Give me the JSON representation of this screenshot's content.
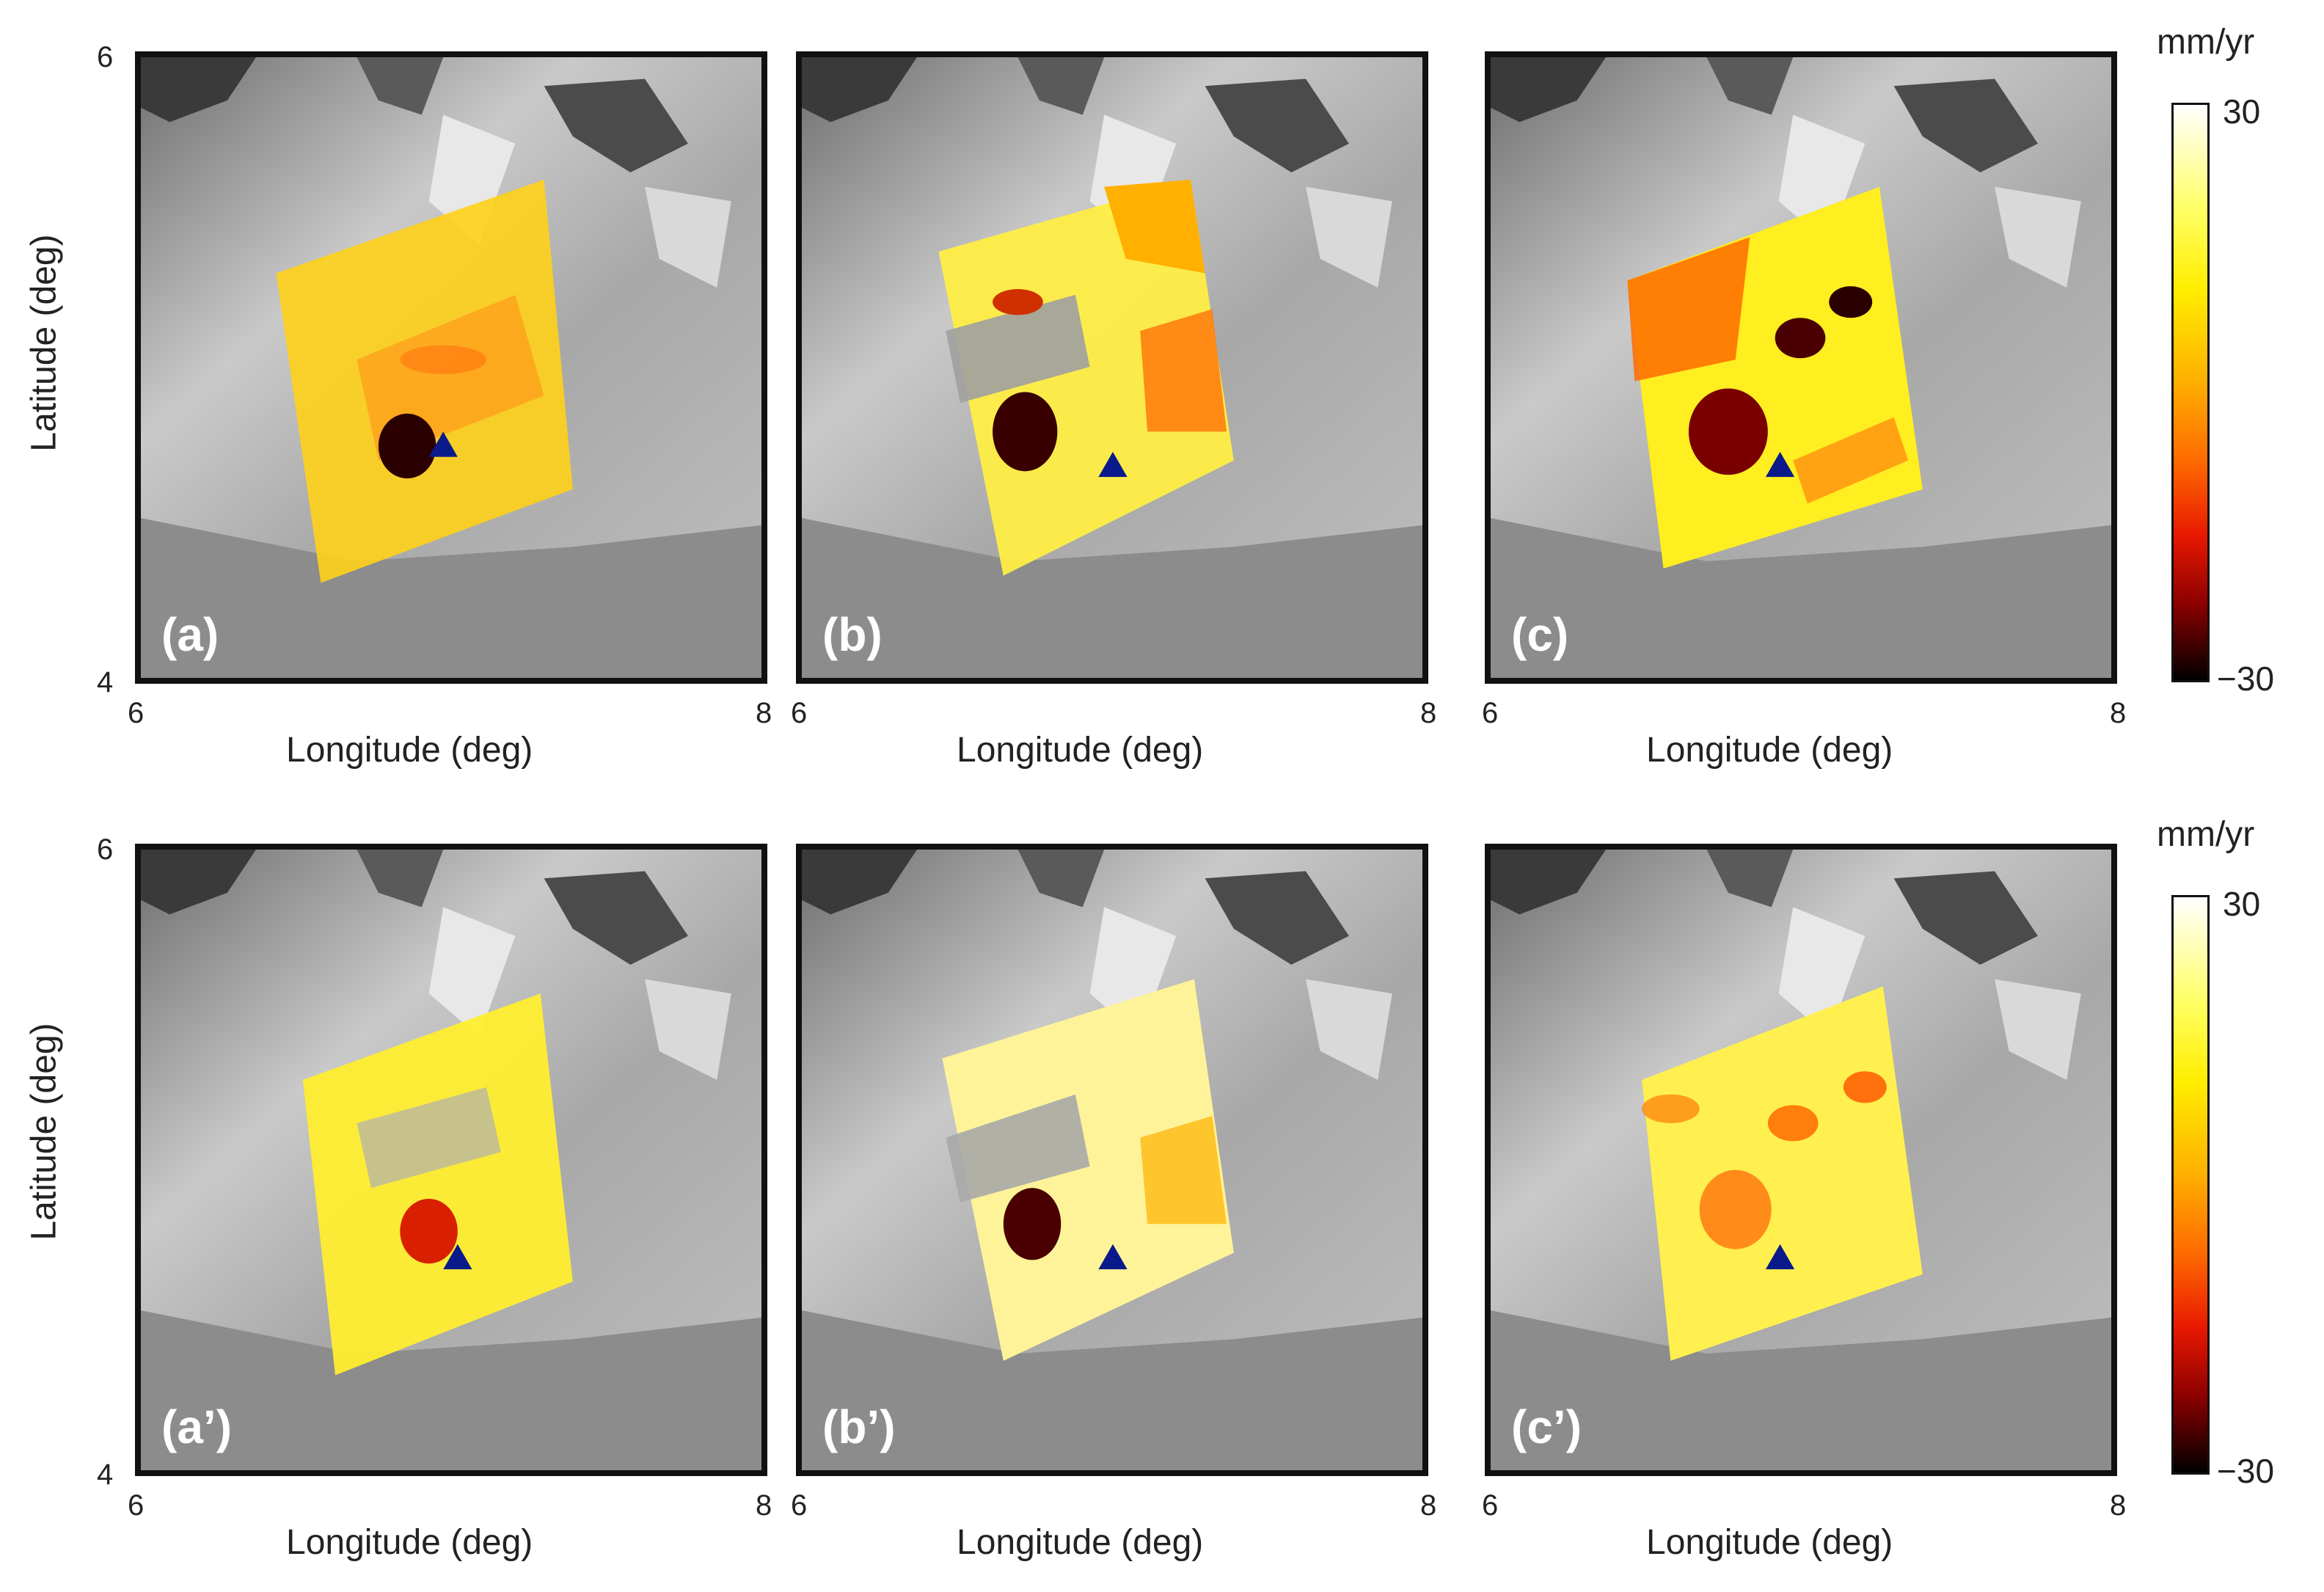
{
  "axes": {
    "xlabel": "Longitude (deg)",
    "ylabel": "Latitude (deg)",
    "x_ticks": [
      "6",
      "8"
    ],
    "y_ticks": [
      "6",
      "4"
    ]
  },
  "colorbar": {
    "unit": "mm/yr",
    "max": "30",
    "min": "−30",
    "colormap": [
      "#ffffff",
      "#ffff66",
      "#ffee00",
      "#ffb000",
      "#ff6a00",
      "#e81800",
      "#8a0000",
      "#000000"
    ]
  },
  "panels": [
    {
      "id": "a",
      "label": "(a)"
    },
    {
      "id": "b",
      "label": "(b)"
    },
    {
      "id": "c",
      "label": "(c)"
    },
    {
      "id": "a_prime",
      "label": "(a’)"
    },
    {
      "id": "b_prime",
      "label": "(b’)"
    },
    {
      "id": "c_prime",
      "label": "(c’)"
    }
  ],
  "legend_items": {
    "marker_color": "#0a1a8a",
    "sea_color": "#8c8c8c"
  }
}
